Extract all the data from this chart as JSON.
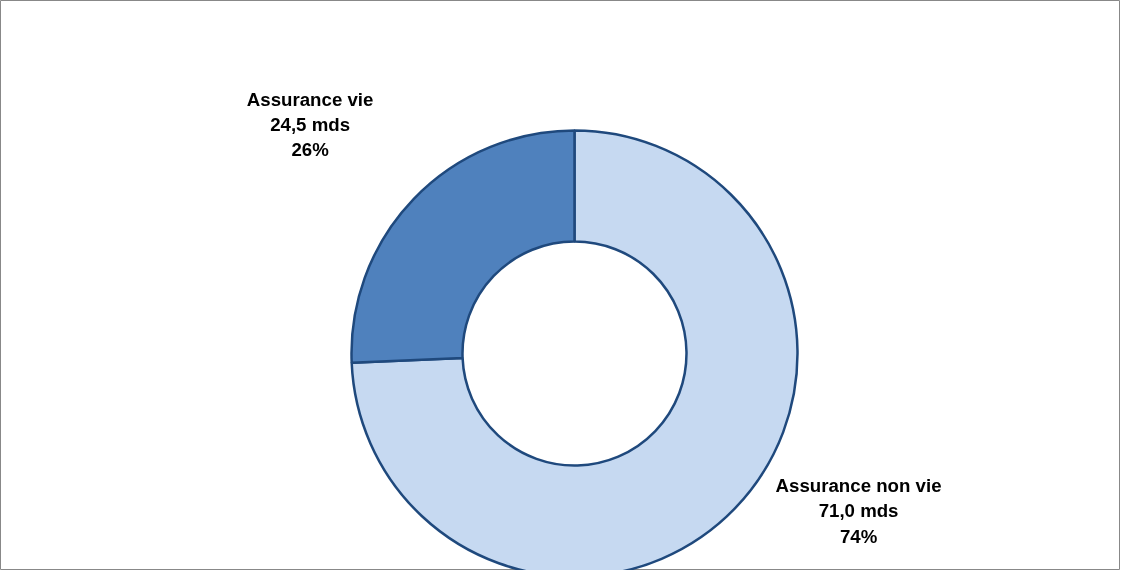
{
  "chart_data": {
    "type": "donut",
    "categories": [
      "Assurance non vie",
      "Assurance vie"
    ],
    "values": [
      71.0,
      24.5
    ],
    "colors": [
      "#c6d9f1",
      "#4f81bd"
    ],
    "value_labels": [
      "71,0 mds\n74%",
      "24,5 mds\n26%"
    ]
  }
}
